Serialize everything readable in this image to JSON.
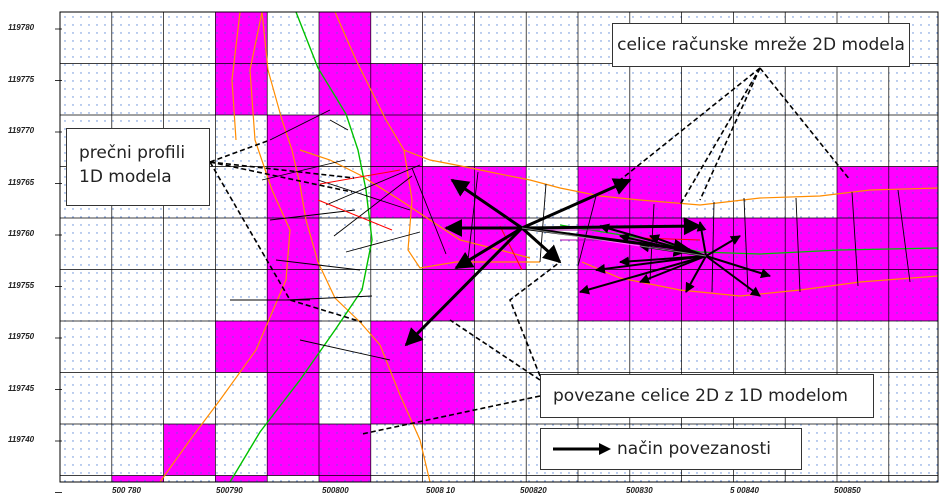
{
  "colors": {
    "cell_fill": "#ff00ff",
    "grid_major": "#000000",
    "grid_minor": "#3a6fd0",
    "boundary": "#ff8c00",
    "river_line": "#00c000",
    "section_lines": "#000000",
    "link_arrows": "#000000",
    "dashed_leaders": "#000000"
  },
  "y_axis_labels": [
    "119780",
    "119775",
    "119770",
    "119765",
    "119760",
    "119755",
    "119750",
    "119745",
    "119740"
  ],
  "x_axis_labels": [
    "500 780",
    "500790",
    "500800",
    "5008 10",
    "500820",
    "500830",
    "5 00840",
    "500850"
  ],
  "callouts": {
    "cells_2d": "celice računske mreže 2D modela",
    "profiles_1d_line1": "prečni profili",
    "profiles_1d_line2": "1D modela",
    "linked_cells": "povezane celice 2D z 1D modelom",
    "link_method": "način povezanosti"
  }
}
